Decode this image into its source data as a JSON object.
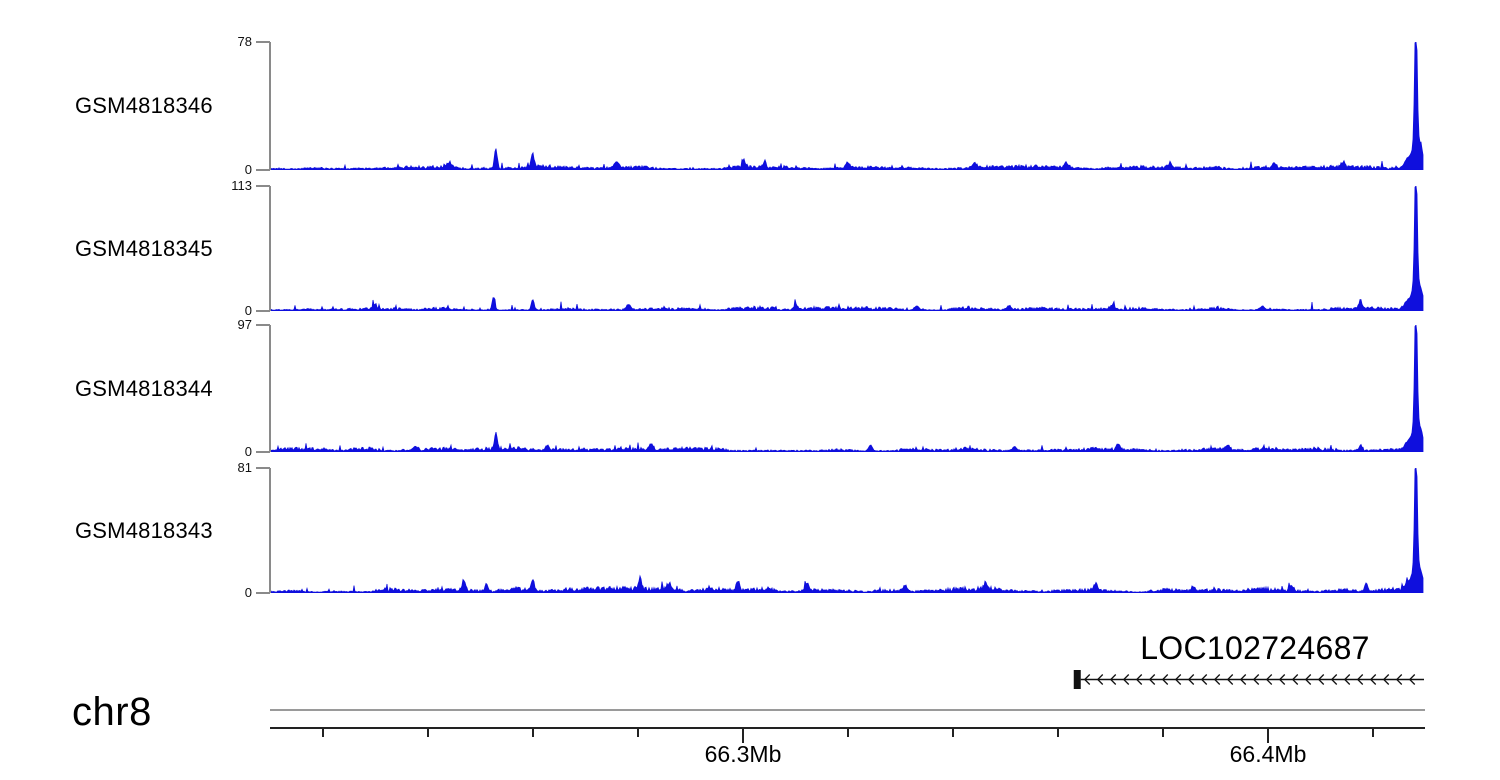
{
  "chromosome": {
    "label": "chr8"
  },
  "gene": {
    "name": "LOC102724687",
    "strand": "-"
  },
  "colors": {
    "signal_blue": "#0f0fdd",
    "axis_gray": "#8a8a8a",
    "ruler_black": "#222222",
    "gene_black": "#111111",
    "text": "#000000",
    "background": "#ffffff"
  },
  "tracks": [
    {
      "label": "GSM4818346",
      "ymax_label": "78",
      "zero_label": "0",
      "seed": 101,
      "noise": {
        "base": 0.01,
        "var": 0.028
      },
      "peaks": [
        {
          "f": 0.195,
          "h": 0.15,
          "w": 1.4
        },
        {
          "f": 0.227,
          "h": 0.11,
          "w": 1.4
        },
        {
          "f": 0.155,
          "h": 0.03,
          "w": 4
        },
        {
          "f": 0.3,
          "h": 0.04,
          "w": 2.5
        },
        {
          "f": 0.41,
          "h": 0.06,
          "w": 1.6
        },
        {
          "f": 0.428,
          "h": 0.045,
          "w": 1.6
        },
        {
          "f": 0.5,
          "h": 0.045,
          "w": 2.0
        },
        {
          "f": 0.61,
          "h": 0.035,
          "w": 2.2
        },
        {
          "f": 0.69,
          "h": 0.035,
          "w": 2.0
        },
        {
          "f": 0.78,
          "h": 0.03,
          "w": 2.5
        },
        {
          "f": 0.87,
          "h": 0.035,
          "w": 2.0
        },
        {
          "f": 0.93,
          "h": 0.045,
          "w": 1.8
        },
        {
          "f": 0.993,
          "h": 1.0,
          "w": 1.2
        },
        {
          "f": 0.993,
          "h": 0.22,
          "w": 2.8
        },
        {
          "f": 0.987,
          "h": 0.08,
          "w": 4
        },
        {
          "f": 0.9975,
          "h": 0.13,
          "w": 2.5
        }
      ]
    },
    {
      "label": "GSM4818345",
      "ymax_label": "113",
      "zero_label": "0",
      "seed": 202,
      "noise": {
        "base": 0.01,
        "var": 0.026
      },
      "peaks": [
        {
          "f": 0.193,
          "h": 0.105,
          "w": 1.4
        },
        {
          "f": 0.227,
          "h": 0.085,
          "w": 1.4
        },
        {
          "f": 0.09,
          "h": 0.04,
          "w": 1.8
        },
        {
          "f": 0.31,
          "h": 0.035,
          "w": 2.2
        },
        {
          "f": 0.455,
          "h": 0.035,
          "w": 2.0
        },
        {
          "f": 0.56,
          "h": 0.03,
          "w": 2.4
        },
        {
          "f": 0.64,
          "h": 0.03,
          "w": 2.0
        },
        {
          "f": 0.73,
          "h": 0.035,
          "w": 2.0
        },
        {
          "f": 0.86,
          "h": 0.03,
          "w": 2.2
        },
        {
          "f": 0.945,
          "h": 0.07,
          "w": 1.4
        },
        {
          "f": 0.993,
          "h": 1.0,
          "w": 1.2
        },
        {
          "f": 0.993,
          "h": 0.22,
          "w": 2.8
        },
        {
          "f": 0.987,
          "h": 0.08,
          "w": 4
        },
        {
          "f": 0.9975,
          "h": 0.13,
          "w": 2.5
        }
      ]
    },
    {
      "label": "GSM4818344",
      "ymax_label": "97",
      "zero_label": "0",
      "seed": 303,
      "noise": {
        "base": 0.01,
        "var": 0.027
      },
      "peaks": [
        {
          "f": 0.195,
          "h": 0.13,
          "w": 1.4
        },
        {
          "f": 0.24,
          "h": 0.04,
          "w": 1.8
        },
        {
          "f": 0.125,
          "h": 0.035,
          "w": 2.0
        },
        {
          "f": 0.33,
          "h": 0.04,
          "w": 2.0
        },
        {
          "f": 0.52,
          "h": 0.045,
          "w": 1.8
        },
        {
          "f": 0.645,
          "h": 0.035,
          "w": 2.0
        },
        {
          "f": 0.735,
          "h": 0.04,
          "w": 1.8
        },
        {
          "f": 0.83,
          "h": 0.03,
          "w": 2.2
        },
        {
          "f": 0.945,
          "h": 0.045,
          "w": 1.6
        },
        {
          "f": 0.993,
          "h": 1.0,
          "w": 1.2
        },
        {
          "f": 0.993,
          "h": 0.22,
          "w": 2.8
        },
        {
          "f": 0.987,
          "h": 0.08,
          "w": 4
        },
        {
          "f": 0.9975,
          "h": 0.13,
          "w": 2.5
        }
      ]
    },
    {
      "label": "GSM4818343",
      "ymax_label": "81",
      "zero_label": "0",
      "seed": 404,
      "noise": {
        "base": 0.012,
        "var": 0.033
      },
      "peaks": [
        {
          "f": 0.167,
          "h": 0.075,
          "w": 1.5
        },
        {
          "f": 0.187,
          "h": 0.06,
          "w": 1.5
        },
        {
          "f": 0.227,
          "h": 0.095,
          "w": 1.5
        },
        {
          "f": 0.32,
          "h": 0.095,
          "w": 1.4
        },
        {
          "f": 0.345,
          "h": 0.05,
          "w": 1.8
        },
        {
          "f": 0.405,
          "h": 0.08,
          "w": 1.5
        },
        {
          "f": 0.465,
          "h": 0.06,
          "w": 1.6
        },
        {
          "f": 0.55,
          "h": 0.045,
          "w": 2.0
        },
        {
          "f": 0.62,
          "h": 0.055,
          "w": 1.8
        },
        {
          "f": 0.715,
          "h": 0.05,
          "w": 1.8
        },
        {
          "f": 0.8,
          "h": 0.04,
          "w": 2.0
        },
        {
          "f": 0.885,
          "h": 0.045,
          "w": 2.0
        },
        {
          "f": 0.95,
          "h": 0.07,
          "w": 1.5
        },
        {
          "f": 0.993,
          "h": 1.0,
          "w": 1.2
        },
        {
          "f": 0.993,
          "h": 0.22,
          "w": 2.8
        },
        {
          "f": 0.987,
          "h": 0.08,
          "w": 4
        },
        {
          "f": 0.9975,
          "h": 0.13,
          "w": 2.5
        }
      ]
    }
  ],
  "ruler": {
    "major_ticks": [
      {
        "mb": 66.3,
        "label": "66.3Mb"
      },
      {
        "mb": 66.4,
        "label": "66.4Mb"
      }
    ],
    "minor_ticks_mb": [
      66.22,
      66.24,
      66.26,
      66.28,
      66.32,
      66.34,
      66.36,
      66.38,
      66.42
    ]
  },
  "chart_data": {
    "type": "area",
    "title": "",
    "x_axis": {
      "label": "chr8",
      "unit": "Mb",
      "range": [
        66.21,
        66.43
      ],
      "major_ticks": [
        66.3,
        66.4
      ],
      "tick_labels": [
        "66.3Mb",
        "66.4Mb"
      ],
      "minor_tick_interval_mb": 0.02,
      "grid": false
    },
    "series": [
      {
        "name": "GSM4818346",
        "ylim": [
          0,
          78
        ],
        "y_tick_labels": [
          "0",
          "78"
        ],
        "main_peak": {
          "position_mb": 66.428,
          "value": 78
        }
      },
      {
        "name": "GSM4818345",
        "ylim": [
          0,
          113
        ],
        "y_tick_labels": [
          "0",
          "113"
        ],
        "main_peak": {
          "position_mb": 66.428,
          "value": 113
        }
      },
      {
        "name": "GSM4818344",
        "ylim": [
          0,
          97
        ],
        "y_tick_labels": [
          "0",
          "97"
        ],
        "main_peak": {
          "position_mb": 66.428,
          "value": 97
        }
      },
      {
        "name": "GSM4818343",
        "ylim": [
          0,
          81
        ],
        "y_tick_labels": [
          "0",
          "81"
        ],
        "main_peak": {
          "position_mb": 66.428,
          "value": 81
        }
      }
    ],
    "annotations": [
      {
        "type": "gene",
        "name": "LOC102724687",
        "chrom": "chr8",
        "start_mb": 66.363,
        "end_mb": 66.43,
        "strand": "-"
      }
    ],
    "legend": {
      "shown": false
    },
    "description": "Four genome-browser coverage tracks (blue fill) over chr8:66.21-66.43Mb, each with a dominant shared peak near 66.428Mb and minor noise peaks; minus-strand gene LOC102724687 shown below."
  }
}
